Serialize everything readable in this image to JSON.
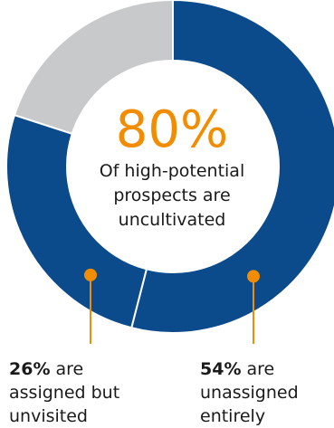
{
  "chart_data": {
    "type": "pie",
    "style": "donut",
    "segments": [
      {
        "name": "unassigned entirely",
        "value": 54,
        "color": "#0b4a8b"
      },
      {
        "name": "assigned but unvisited",
        "value": 26,
        "color": "#0b4a8b"
      },
      {
        "name": "cultivated",
        "value": 20,
        "color": "#c8c9cb"
      }
    ],
    "center": {
      "value": "80%",
      "lines": [
        "Of high-potential",
        "prospects are",
        "uncultivated"
      ]
    },
    "labels": [
      {
        "percent": "54%",
        "lines": [
          " are",
          "unassigned",
          "entirely"
        ]
      },
      {
        "percent": "26%",
        "lines": [
          " are",
          "assigned but",
          "unvisited"
        ]
      }
    ],
    "colors": {
      "primary": "#0b4a8b",
      "secondary": "#c8c9cb",
      "accent": "#f28c00",
      "text": "#1a1a1a"
    }
  }
}
